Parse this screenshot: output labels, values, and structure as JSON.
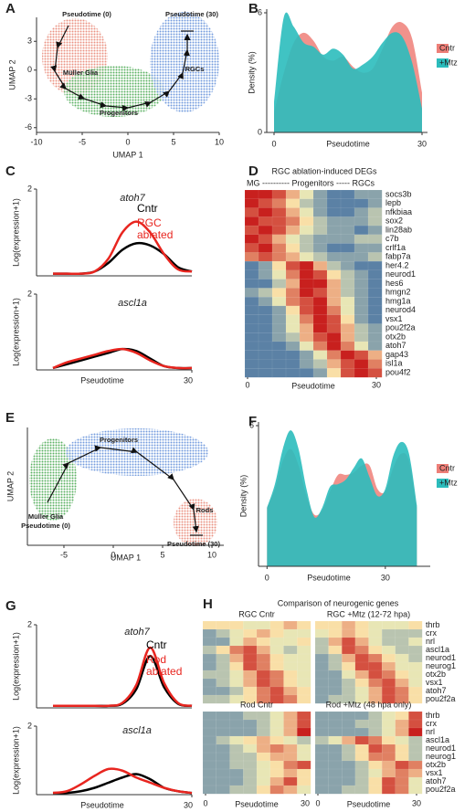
{
  "chart_data": [
    {
      "type": "scatter",
      "panel": "A",
      "xlabel": "UMAP 1",
      "ylabel": "UMAP 2",
      "xlim": [
        -10,
        10
      ],
      "xticks": [
        -10,
        -5,
        0,
        5,
        10
      ],
      "ylim": [
        -6.5,
        5.5
      ],
      "yticks": [
        -6,
        -3,
        0,
        3
      ],
      "annotations": [
        "Pseudotime (0)",
        "Pseudotime (30)",
        "Müller Glia",
        "Progenitors",
        "RGCs"
      ]
    },
    {
      "type": "area",
      "panel": "B",
      "xlabel": "Pseudotime",
      "ylabel": "Density (%)",
      "xlim": [
        0,
        30
      ],
      "xticks": [
        0,
        30
      ],
      "ylim": [
        0,
        6
      ],
      "yticks": [
        0,
        6
      ],
      "x": [
        0,
        2,
        4,
        6,
        8,
        10,
        12,
        14,
        16,
        18,
        20,
        22,
        24,
        26,
        28,
        30
      ],
      "series": [
        {
          "name": "Cntr",
          "color": "#ee7f78",
          "values": [
            1,
            3,
            4.5,
            5,
            4.6,
            3.8,
            3.6,
            3.8,
            3.3,
            3.0,
            3.2,
            4.2,
            5.3,
            5.5,
            4.7,
            2.0
          ]
        },
        {
          "name": "+Mtz",
          "color": "#2bbcbc",
          "values": [
            1.5,
            5.8,
            5.3,
            4.5,
            4.3,
            3.9,
            4.2,
            3.9,
            3.2,
            3.4,
            3.8,
            4.5,
            5.0,
            4.8,
            3.5,
            1.2
          ]
        }
      ]
    },
    {
      "type": "line",
      "panel": "C",
      "xlabel": "Pseudotime",
      "ylabel": "Log(expression+1)",
      "xlim": [
        0,
        30
      ],
      "xticks": [
        30
      ],
      "ylim": [
        0,
        2
      ],
      "yticks": [
        2
      ],
      "x": [
        0,
        3,
        6,
        9,
        12,
        15,
        18,
        21,
        24,
        27,
        30
      ],
      "legend": [
        {
          "name": "Cntr",
          "color": "#000000"
        },
        {
          "name": "RGC ablated",
          "color": "#e8251f"
        }
      ],
      "subplots": [
        {
          "title": "atoh7",
          "series": [
            {
              "values": [
                0.05,
                0.05,
                0.05,
                0.1,
                0.3,
                0.6,
                0.75,
                0.7,
                0.5,
                0.2,
                0.1
              ]
            },
            {
              "values": [
                0.05,
                0.05,
                0.05,
                0.1,
                0.4,
                1.0,
                1.25,
                1.0,
                0.5,
                0.15,
                0.1
              ]
            }
          ]
        },
        {
          "title": "ascl1a",
          "series": [
            {
              "values": [
                0.05,
                0.15,
                0.25,
                0.35,
                0.45,
                0.55,
                0.5,
                0.3,
                0.1,
                0.05,
                0.05
              ]
            },
            {
              "values": [
                0.05,
                0.2,
                0.3,
                0.4,
                0.5,
                0.55,
                0.45,
                0.25,
                0.1,
                0.05,
                0.05
              ]
            }
          ]
        }
      ]
    },
    {
      "type": "heatmap",
      "panel": "D",
      "title": "RGC ablation-induced DEGs",
      "header": "MG ---------- Progenitors ----- RGCs",
      "xlabel": "Pseudotime",
      "xlim": [
        0,
        30
      ],
      "xticks": [
        0,
        30
      ],
      "clim": [
        0,
        9
      ],
      "colors": [
        "#2c5fa0",
        "#fff7b8",
        "#c8201e"
      ],
      "rows": [
        "socs3b",
        "lepb",
        "nfkbiaa",
        "sox2",
        "lin28ab",
        "c7b",
        "crlf1a",
        "fabp7a",
        "her4.2",
        "neurod1",
        "hes6",
        "hmgn2",
        "hmg1a",
        "neurod4",
        "vsx1",
        "pou2f2a",
        "otx2b",
        "atoh7",
        "gap43",
        "isl1a",
        "pou4f2"
      ],
      "values": [
        [
          9,
          9,
          8,
          6,
          4,
          2,
          1,
          1,
          2,
          2
        ],
        [
          9,
          8,
          7,
          5,
          3,
          2,
          1,
          1,
          1,
          2
        ],
        [
          8,
          9,
          8,
          6,
          4,
          2,
          1,
          1,
          2,
          3
        ],
        [
          9,
          8,
          8,
          7,
          5,
          3,
          2,
          2,
          2,
          3
        ],
        [
          8,
          9,
          8,
          6,
          4,
          3,
          2,
          2,
          1,
          2
        ],
        [
          9,
          8,
          6,
          4,
          3,
          2,
          2,
          2,
          3,
          3
        ],
        [
          8,
          9,
          7,
          5,
          3,
          2,
          1,
          1,
          2,
          2
        ],
        [
          7,
          8,
          7,
          6,
          4,
          3,
          2,
          2,
          2,
          3
        ],
        [
          1,
          2,
          5,
          8,
          9,
          6,
          3,
          2,
          1,
          1
        ],
        [
          1,
          2,
          4,
          7,
          9,
          8,
          5,
          3,
          2,
          1
        ],
        [
          1,
          1,
          3,
          6,
          9,
          9,
          6,
          3,
          2,
          1
        ],
        [
          2,
          3,
          5,
          7,
          9,
          8,
          6,
          3,
          2,
          1
        ],
        [
          1,
          2,
          4,
          7,
          8,
          9,
          6,
          4,
          2,
          1
        ],
        [
          1,
          1,
          2,
          5,
          8,
          9,
          7,
          4,
          2,
          1
        ],
        [
          1,
          1,
          2,
          4,
          7,
          9,
          8,
          5,
          2,
          1
        ],
        [
          1,
          1,
          2,
          4,
          6,
          9,
          8,
          6,
          3,
          2
        ],
        [
          1,
          1,
          2,
          3,
          6,
          8,
          9,
          6,
          3,
          2
        ],
        [
          1,
          1,
          1,
          2,
          4,
          7,
          9,
          7,
          4,
          2
        ],
        [
          1,
          1,
          1,
          1,
          2,
          4,
          7,
          9,
          8,
          6
        ],
        [
          1,
          1,
          1,
          1,
          2,
          3,
          6,
          8,
          9,
          7
        ],
        [
          1,
          1,
          1,
          1,
          1,
          2,
          5,
          8,
          9,
          8
        ]
      ]
    },
    {
      "type": "scatter",
      "panel": "E",
      "xlabel": "UMAP 1",
      "ylabel": "UMAP 2",
      "xlim": [
        -8.7,
        11.2
      ],
      "xticks": [
        -5,
        0,
        5,
        10
      ],
      "annotations": [
        "Progenitors",
        "Müller Glia",
        "Pseudotime (0)",
        "Rods",
        "Pseudotime (30)"
      ]
    },
    {
      "type": "area",
      "panel": "F",
      "xlabel": "Pseudotime",
      "ylabel": "Density (%)",
      "xlim": [
        -1,
        40
      ],
      "xticks": [
        0,
        30
      ],
      "ylim": [
        0,
        6
      ],
      "yticks": [
        6
      ],
      "x": [
        0,
        2,
        4,
        6,
        8,
        10,
        12,
        14,
        16,
        18,
        20,
        22,
        24,
        26,
        28,
        30,
        32,
        34,
        36,
        38
      ],
      "series": [
        {
          "name": "Cntr",
          "color": "#ee7f78",
          "values": [
            2.5,
            3.3,
            4.5,
            5.0,
            4.3,
            3.0,
            2.2,
            2.4,
            3.2,
            3.9,
            3.9,
            4.0,
            4.3,
            4.3,
            3.3,
            3.2,
            4.2,
            4.8,
            4.5,
            2.5
          ]
        },
        {
          "name": "+Mtz",
          "color": "#2bbcbc",
          "values": [
            2.5,
            3.5,
            5.0,
            5.8,
            5.0,
            3.3,
            2.1,
            2.5,
            3.4,
            3.5,
            3.7,
            4.2,
            4.6,
            3.8,
            3.0,
            3.3,
            4.7,
            5.3,
            4.8,
            2.6
          ]
        }
      ]
    },
    {
      "type": "line",
      "panel": "G",
      "xlabel": "Pseudotime",
      "ylabel": "Log(expression+1)",
      "xlim": [
        0,
        30
      ],
      "xticks": [
        30
      ],
      "ylim": [
        0,
        2
      ],
      "yticks": [
        2
      ],
      "x": [
        0,
        3,
        6,
        9,
        12,
        15,
        18,
        21,
        24,
        27,
        30
      ],
      "legend": [
        {
          "name": "Cntr",
          "color": "#000000"
        },
        {
          "name": "Rod ablated",
          "color": "#e8251f"
        }
      ],
      "subplots": [
        {
          "title": "atoh7",
          "series": [
            {
              "values": [
                0.05,
                0.05,
                0.05,
                0.05,
                0.05,
                0.1,
                0.45,
                1.25,
                0.5,
                0.1,
                0.05
              ]
            },
            {
              "values": [
                0.05,
                0.05,
                0.05,
                0.05,
                0.05,
                0.12,
                0.55,
                1.45,
                0.6,
                0.12,
                0.05
              ]
            }
          ]
        },
        {
          "title": "ascl1a",
          "series": [
            {
              "values": [
                0.05,
                0.05,
                0.1,
                0.2,
                0.35,
                0.5,
                0.6,
                0.45,
                0.2,
                0.1,
                0.05
              ]
            },
            {
              "values": [
                0.05,
                0.1,
                0.3,
                0.55,
                0.75,
                0.7,
                0.5,
                0.35,
                0.2,
                0.1,
                0.05
              ]
            }
          ]
        }
      ]
    },
    {
      "type": "heatmap",
      "panel": "H",
      "title": "Comparison of neurogenic genes",
      "xlabel": "Pseudotime",
      "xlim": [
        0,
        30
      ],
      "xticks": [
        0,
        30
      ],
      "clim": [
        0,
        9
      ],
      "colors": [
        "#2c5fa0",
        "#fff7b8",
        "#c8201e"
      ],
      "rows": [
        "thrb",
        "crx",
        "nrl",
        "ascl1a",
        "neurod1",
        "neurog1",
        "otx2b",
        "vsx1",
        "atoh7",
        "pou2f2a"
      ],
      "matrices": [
        {
          "title": "RGC Cntr",
          "values": [
            [
              5,
              5,
              5,
              4,
              4,
              5,
              6,
              5
            ],
            [
              2,
              3,
              4,
              5,
              6,
              5,
              4,
              4
            ],
            [
              2,
              2,
              4,
              6,
              5,
              4,
              4,
              5
            ],
            [
              3,
              5,
              7,
              8,
              6,
              4,
              3,
              4
            ],
            [
              2,
              3,
              6,
              8,
              7,
              5,
              4,
              4
            ],
            [
              2,
              3,
              5,
              8,
              7,
              5,
              4,
              4
            ],
            [
              3,
              3,
              4,
              6,
              8,
              7,
              5,
              4
            ],
            [
              2,
              3,
              4,
              6,
              8,
              7,
              5,
              4
            ],
            [
              2,
              2,
              3,
              5,
              7,
              8,
              6,
              5
            ],
            [
              3,
              3,
              4,
              5,
              7,
              8,
              7,
              5
            ]
          ]
        },
        {
          "title": "RGC +Mtz (12-72 hpa)",
          "values": [
            [
              5,
              5,
              6,
              5,
              4,
              4,
              4,
              5
            ],
            [
              4,
              5,
              6,
              5,
              4,
              3,
              3,
              3
            ],
            [
              3,
              6,
              8,
              6,
              4,
              3,
              3,
              4
            ],
            [
              3,
              5,
              8,
              7,
              5,
              4,
              3,
              3
            ],
            [
              2,
              3,
              6,
              8,
              7,
              5,
              4,
              3
            ],
            [
              2,
              3,
              5,
              8,
              8,
              6,
              4,
              4
            ],
            [
              2,
              2,
              4,
              6,
              8,
              7,
              5,
              4
            ],
            [
              2,
              2,
              3,
              5,
              7,
              8,
              6,
              4
            ],
            [
              2,
              2,
              3,
              4,
              6,
              8,
              7,
              5
            ],
            [
              2,
              3,
              3,
              4,
              6,
              8,
              7,
              5
            ]
          ]
        },
        {
          "title": "Rod Cntr",
          "values": [
            [
              2,
              2,
              2,
              3,
              3,
              4,
              6,
              8
            ],
            [
              2,
              2,
              2,
              2,
              3,
              4,
              6,
              8
            ],
            [
              2,
              2,
              2,
              2,
              3,
              4,
              6,
              9
            ],
            [
              2,
              3,
              4,
              5,
              6,
              5,
              4,
              3
            ],
            [
              2,
              2,
              3,
              4,
              6,
              7,
              6,
              4
            ],
            [
              2,
              2,
              3,
              3,
              5,
              6,
              6,
              4
            ],
            [
              2,
              2,
              3,
              3,
              4,
              5,
              7,
              8
            ],
            [
              2,
              2,
              2,
              3,
              4,
              5,
              6,
              5
            ],
            [
              2,
              2,
              2,
              3,
              4,
              6,
              8,
              5
            ],
            [
              2,
              2,
              3,
              3,
              5,
              7,
              6,
              4
            ]
          ]
        },
        {
          "title": "Rod +Mtz (48 hpa only)",
          "values": [
            [
              2,
              2,
              2,
              2,
              3,
              4,
              5,
              8
            ],
            [
              2,
              2,
              2,
              3,
              3,
              4,
              6,
              8
            ],
            [
              2,
              2,
              2,
              2,
              3,
              4,
              6,
              9
            ],
            [
              3,
              4,
              6,
              8,
              7,
              5,
              4,
              3
            ],
            [
              2,
              2,
              3,
              5,
              8,
              7,
              5,
              3
            ],
            [
              2,
              2,
              3,
              5,
              7,
              7,
              5,
              3
            ],
            [
              2,
              2,
              2,
              3,
              5,
              6,
              8,
              7
            ],
            [
              2,
              2,
              2,
              3,
              4,
              6,
              7,
              6
            ],
            [
              2,
              2,
              2,
              3,
              5,
              8,
              7,
              4
            ],
            [
              2,
              2,
              3,
              3,
              5,
              8,
              7,
              4
            ]
          ]
        }
      ]
    }
  ]
}
